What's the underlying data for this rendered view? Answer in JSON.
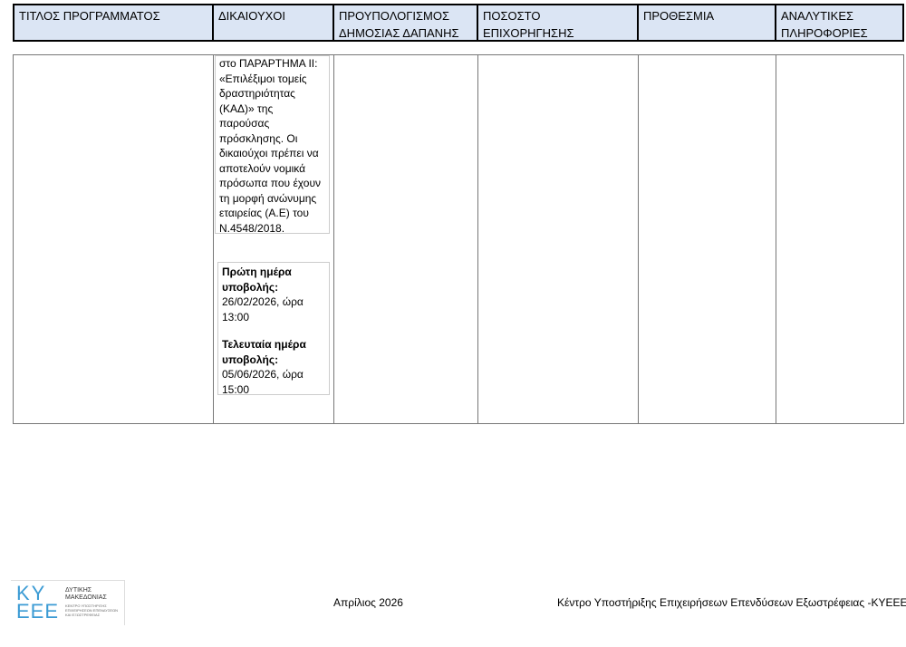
{
  "header": {
    "columns": [
      "ΤΙΤΛΟΣ ΠΡΟΓΡΑΜΜΑΤΟΣ",
      "ΔΙΚΑΙΟΥΧΟΙ",
      "ΠΡΟΥΠΟΛΟΓΙΣΜΟΣ ΔΗΜΟΣΙΑΣ ΔΑΠΑΝΗΣ",
      "ΠΟΣΟΣΤΟ ΕΠΙΧΟΡΗΓΗΣΗΣ",
      "ΠΡΟΘΕΣΜΙΑ",
      "ΑΝΑΛΥΤΙΚΕΣ ΠΛΗΡΟΦΟΡΙΕΣ"
    ]
  },
  "body": {
    "beneficiaries_lines": [
      "στο ΠΑΡΑΡΤΗΜΑ ΙΙ:",
      "«Επιλέξιμοι τομείς",
      "δραστηριότητας",
      "(ΚΑΔ)» της",
      "παρούσας",
      "πρόσκλησης. Οι",
      "δικαιούχοι πρέπει να",
      "αποτελούν νομικά",
      "πρόσωπα που έχουν",
      "τη μορφή ανώνυμης",
      "εταιρείας (Α.Ε) του",
      "Ν.4548/2018."
    ],
    "dates": {
      "first_label": "Πρώτη ημέρα υποβολής:",
      "first_value": "26/02/2026, ώρα 13:00",
      "last_label": "Τελευταία ημέρα υποβολής:",
      "last_value": "05/06/2026, ώρα 15:00"
    }
  },
  "footer": {
    "logo": {
      "top": "ΚΥ",
      "bottom": "ΕΕΕ",
      "region1": "ΔΥΤΙΚΗΣ",
      "region2": "ΜΑΚΕΔΟΝΙΑΣ",
      "subtitle": "ΚΕΝΤΡΟ ΥΠΟΣΤΗΡΙΞΗΣ ΕΠΙΧΕΙΡΗΣΕΩΝ ΕΠΕΝΔΥΣΕΩΝ ΚΑΙ ΕΞΩΣΤΡΕΦΕΙΑΣ"
    },
    "date": "Απρίλιος 2026",
    "organization": "Κέντρο Υποστήριξης Επιχειρήσεων Επενδύσεων Εξωστρέφειας -ΚΥΕΕΕ"
  }
}
